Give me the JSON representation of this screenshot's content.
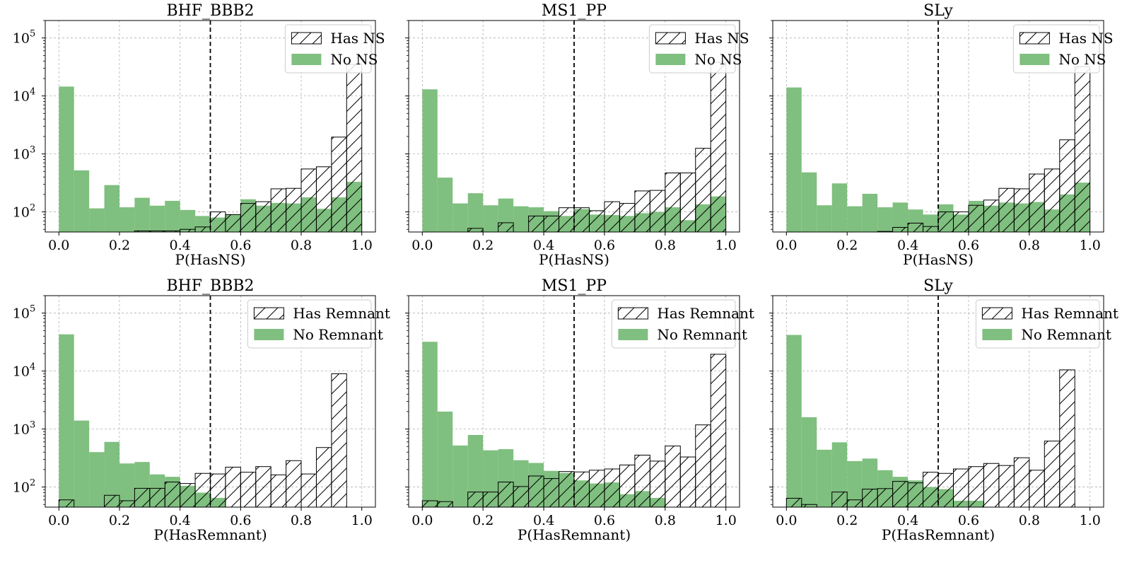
{
  "colors": {
    "no_bar": "#7fbf7f",
    "edge": "#000000",
    "grid": "#b0b0b0"
  },
  "x_ticks": [
    "0.0",
    "0.2",
    "0.4",
    "0.6",
    "0.8",
    "1.0"
  ],
  "y_ticks": [
    {
      "base": "10",
      "exp": "2",
      "value": 100
    },
    {
      "base": "10",
      "exp": "3",
      "value": 1000
    },
    {
      "base": "10",
      "exp": "4",
      "value": 10000
    },
    {
      "base": "10",
      "exp": "5",
      "value": 100000
    }
  ],
  "chart_data": [
    {
      "type": "bar",
      "title": "BHF_BBB2",
      "xlabel": "P(HasNS)",
      "ylog": true,
      "xlim": [
        0,
        1
      ],
      "ylim": [
        45,
        200000
      ],
      "threshold": 0.5,
      "grid": true,
      "legend_position": "top-right",
      "bins": 20,
      "series": [
        {
          "name": "Has NS",
          "style": "hatched",
          "values": [
            0,
            0,
            0,
            0,
            0,
            47,
            47,
            47,
            50,
            55,
            100,
            90,
            140,
            150,
            250,
            255,
            550,
            600,
            1950,
            35000
          ]
        },
        {
          "name": "No NS",
          "style": "filled",
          "values": [
            14500,
            520,
            115,
            290,
            120,
            175,
            128,
            155,
            108,
            85,
            80,
            90,
            165,
            128,
            143,
            140,
            178,
            113,
            178,
            330
          ]
        }
      ]
    },
    {
      "type": "bar",
      "title": "MS1_PP",
      "xlabel": "P(HasNS)",
      "ylog": true,
      "xlim": [
        0,
        1
      ],
      "ylim": [
        45,
        200000
      ],
      "threshold": 0.5,
      "grid": true,
      "legend_position": "top-right",
      "bins": 20,
      "series": [
        {
          "name": "Has NS",
          "style": "hatched",
          "values": [
            0,
            0,
            0,
            52,
            0,
            65,
            0,
            85,
            85,
            118,
            118,
            105,
            150,
            140,
            230,
            235,
            470,
            470,
            1250,
            38000
          ]
        },
        {
          "name": "No NS",
          "style": "filled",
          "values": [
            13000,
            390,
            140,
            210,
            130,
            170,
            125,
            120,
            103,
            85,
            112,
            90,
            88,
            85,
            95,
            100,
            120,
            72,
            135,
            185
          ]
        }
      ]
    },
    {
      "type": "bar",
      "title": "SLy",
      "xlabel": "P(HasNS)",
      "ylog": true,
      "xlim": [
        0,
        1
      ],
      "ylim": [
        45,
        200000
      ],
      "threshold": 0.5,
      "grid": true,
      "legend_position": "top-right",
      "bins": 20,
      "series": [
        {
          "name": "Has NS",
          "style": "hatched",
          "values": [
            0,
            0,
            0,
            0,
            0,
            0,
            46,
            54,
            64,
            56,
            100,
            100,
            130,
            160,
            255,
            250,
            450,
            550,
            1750,
            32000
          ]
        },
        {
          "name": "No NS",
          "style": "filled",
          "values": [
            14000,
            480,
            130,
            310,
            125,
            205,
            120,
            145,
            110,
            90,
            135,
            90,
            155,
            128,
            145,
            140,
            148,
            110,
            200,
            320
          ]
        }
      ]
    },
    {
      "type": "bar",
      "title": "BHF_BBB2",
      "xlabel": "P(HasRemnant)",
      "ylog": true,
      "xlim": [
        0,
        1
      ],
      "ylim": [
        45,
        200000
      ],
      "threshold": 0.5,
      "grid": true,
      "legend_position": "top-right",
      "bins": 20,
      "series": [
        {
          "name": "Has Remnant",
          "style": "hatched",
          "values": [
            60,
            0,
            0,
            72,
            58,
            95,
            95,
            122,
            115,
            172,
            168,
            220,
            180,
            225,
            162,
            285,
            168,
            480,
            9000,
            0
          ]
        },
        {
          "name": "No Remnant",
          "style": "filled",
          "values": [
            43000,
            1400,
            400,
            600,
            255,
            270,
            165,
            150,
            105,
            80,
            65,
            0,
            0,
            0,
            0,
            0,
            0,
            0,
            0,
            0
          ]
        }
      ]
    },
    {
      "type": "bar",
      "title": "MS1_PP",
      "xlabel": "P(HasRemnant)",
      "ylog": true,
      "xlim": [
        0,
        1
      ],
      "ylim": [
        45,
        200000
      ],
      "threshold": 0.5,
      "grid": true,
      "legend_position": "top-right",
      "bins": 20,
      "series": [
        {
          "name": "Has Remnant",
          "style": "hatched",
          "values": [
            58,
            56,
            0,
            82,
            82,
            122,
            102,
            155,
            140,
            185,
            182,
            195,
            205,
            240,
            355,
            280,
            510,
            330,
            1180,
            19500
          ]
        },
        {
          "name": "No Remnant",
          "style": "filled",
          "values": [
            32000,
            2000,
            520,
            790,
            430,
            450,
            290,
            260,
            190,
            175,
            130,
            115,
            120,
            75,
            85,
            65,
            0,
            0,
            0,
            0
          ]
        }
      ]
    },
    {
      "type": "bar",
      "title": "SLy",
      "xlabel": "P(HasRemnant)",
      "ylog": true,
      "xlim": [
        0,
        1
      ],
      "ylim": [
        45,
        200000
      ],
      "threshold": 0.5,
      "grid": true,
      "legend_position": "top-right",
      "bins": 20,
      "series": [
        {
          "name": "Has Remnant",
          "style": "hatched",
          "values": [
            64,
            50,
            0,
            82,
            60,
            92,
            94,
            125,
            118,
            180,
            172,
            205,
            225,
            255,
            235,
            320,
            195,
            620,
            10500,
            0
          ]
        },
        {
          "name": "No Remnant",
          "style": "filled",
          "values": [
            42000,
            1600,
            440,
            590,
            280,
            310,
            195,
            150,
            130,
            100,
            92,
            58,
            58,
            0,
            0,
            0,
            0,
            0,
            0,
            0
          ]
        }
      ]
    }
  ]
}
